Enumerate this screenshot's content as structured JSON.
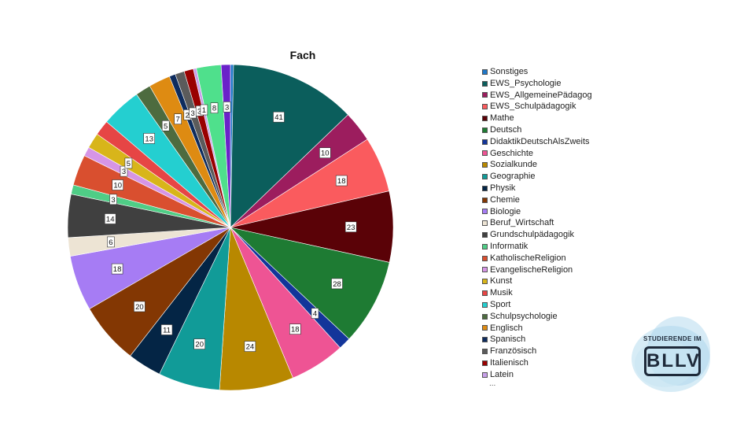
{
  "chart_data": {
    "type": "pie",
    "title": "Fach",
    "slices": [
      {
        "label": "Sonstiges",
        "value": 1,
        "color": "#1f77c8",
        "show_label": false
      },
      {
        "label": "EWS_Psychologie",
        "value": 41,
        "color": "#0b5e5c",
        "show_label": true
      },
      {
        "label": "EWS_AllgemeinePädagog",
        "value": 10,
        "color": "#9c1d5e",
        "show_label": true
      },
      {
        "label": "EWS_Schulpädagogik",
        "value": 18,
        "color": "#fa5b5e",
        "show_label": true
      },
      {
        "label": "Mathe",
        "value": 23,
        "color": "#5a0207",
        "show_label": true
      },
      {
        "label": "Deutsch",
        "value": 28,
        "color": "#1e7b33",
        "show_label": true
      },
      {
        "label": "DidaktikDeutschAlsZweits",
        "value": 4,
        "color": "#13359a",
        "show_label": true
      },
      {
        "label": "Geschichte",
        "value": 18,
        "color": "#ee5494",
        "show_label": true
      },
      {
        "label": "Sozialkunde",
        "value": 24,
        "color": "#b88800",
        "show_label": true
      },
      {
        "label": "Geographie",
        "value": 20,
        "color": "#119b98",
        "show_label": true
      },
      {
        "label": "Physik",
        "value": 11,
        "color": "#042545",
        "show_label": true
      },
      {
        "label": "Chemie",
        "value": 20,
        "color": "#833703",
        "show_label": true
      },
      {
        "label": "Biologie",
        "value": 18,
        "color": "#a67cf4",
        "show_label": true
      },
      {
        "label": "Beruf_Wirtschaft",
        "value": 6,
        "color": "#ede4d4",
        "show_label": true
      },
      {
        "label": "Grundschulpädagogik",
        "value": 14,
        "color": "#404040",
        "show_label": true
      },
      {
        "label": "Informatik",
        "value": 3,
        "color": "#4fcd86",
        "show_label": true
      },
      {
        "label": "KatholischeReligion",
        "value": 10,
        "color": "#d94f2f",
        "show_label": true
      },
      {
        "label": "EvangelischeReligion",
        "value": 3,
        "color": "#d695e6",
        "show_label": true
      },
      {
        "label": "Kunst",
        "value": 5,
        "color": "#d8b51a",
        "show_label": true
      },
      {
        "label": "Musik",
        "value": 5,
        "color": "#e64545",
        "show_label": false
      },
      {
        "label": "Sport",
        "value": 13,
        "color": "#24cfd0",
        "show_label": true
      },
      {
        "label": "Schulpsychologie",
        "value": 5,
        "color": "#4d6b3f",
        "show_label": true
      },
      {
        "label": "Englisch",
        "value": 7,
        "color": "#de8b12",
        "show_label": true
      },
      {
        "label": "Spanisch",
        "value": 2,
        "color": "#0e2c5e",
        "show_label": true
      },
      {
        "label": "Französisch",
        "value": 3,
        "color": "#5b5b5b",
        "show_label": true
      },
      {
        "label": "Italienisch",
        "value": 3,
        "color": "#990000",
        "show_label": true
      },
      {
        "label": "Latein",
        "value": 1,
        "color": "#c8a0ea",
        "show_label": true
      },
      {
        "label": "",
        "value": 8,
        "color": "#4fe08c",
        "show_label": true
      },
      {
        "label": "",
        "value": 3,
        "color": "#6a22c9",
        "show_label": true
      }
    ],
    "legend_position": "right",
    "legend_more": "..."
  },
  "logo": {
    "top_text": "STUDIERENDE IM",
    "main_text": "BLLV"
  }
}
